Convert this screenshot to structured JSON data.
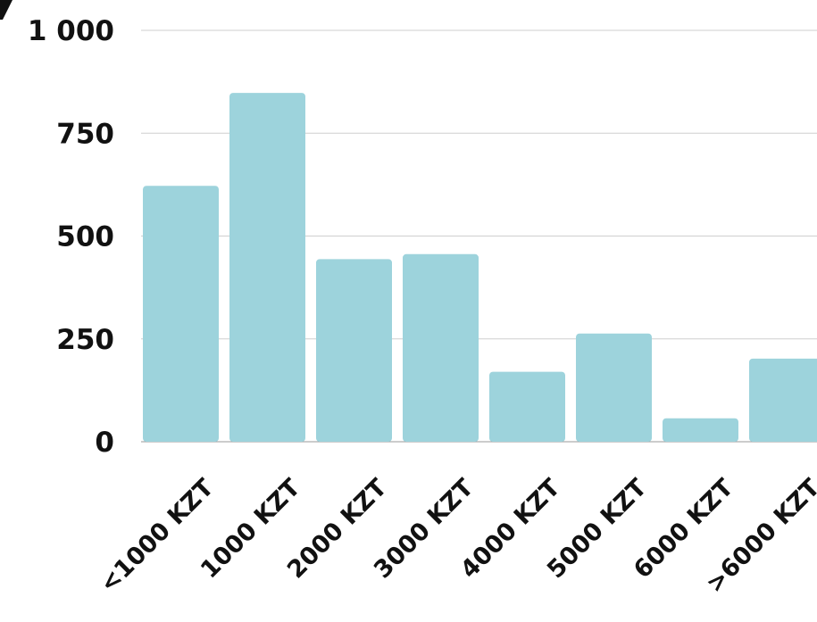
{
  "chart_data": {
    "type": "bar",
    "categories": [
      "<1000 KZT",
      "1000 KZT",
      "2000 KZT",
      "3000 KZT",
      "4000 KZT",
      "5000 KZT",
      "6000 KZT",
      ">6000 KZT"
    ],
    "values": [
      622,
      848,
      444,
      456,
      170,
      263,
      57,
      202
    ],
    "yticks": [
      "0",
      "250",
      "500",
      "750",
      "1 000"
    ],
    "ylim": [
      0,
      1000
    ],
    "grid": true,
    "bar_color": "#9dd3dc",
    "title": "",
    "xlabel": "",
    "ylabel": ""
  }
}
